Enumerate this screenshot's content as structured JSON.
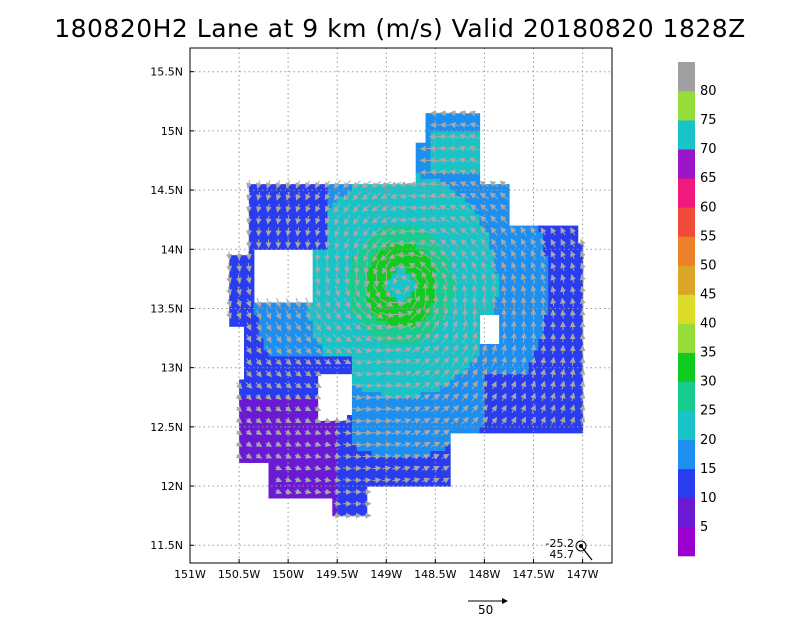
{
  "chart_data": {
    "type": "heatmap",
    "title": "180820H2 Lane at 9 km (m/s) Valid 20180820 1828Z",
    "xlabel": "",
    "ylabel": "",
    "xlim": [
      -151.0,
      -146.7
    ],
    "ylim": [
      11.35,
      15.7
    ],
    "x_ticks": [
      {
        "v": -151.0,
        "label": "151W"
      },
      {
        "v": -150.5,
        "label": "150.5W"
      },
      {
        "v": -150.0,
        "label": "150W"
      },
      {
        "v": -149.5,
        "label": "149.5W"
      },
      {
        "v": -149.0,
        "label": "149W"
      },
      {
        "v": -148.5,
        "label": "148.5W"
      },
      {
        "v": -148.0,
        "label": "148W"
      },
      {
        "v": -147.5,
        "label": "147.5W"
      },
      {
        "v": -147.0,
        "label": "147W"
      }
    ],
    "y_ticks": [
      {
        "v": 11.5,
        "label": "11.5N"
      },
      {
        "v": 12.0,
        "label": "12N"
      },
      {
        "v": 12.5,
        "label": "12.5N"
      },
      {
        "v": 13.0,
        "label": "13N"
      },
      {
        "v": 13.5,
        "label": "13.5N"
      },
      {
        "v": 14.0,
        "label": "14N"
      },
      {
        "v": 14.5,
        "label": "14.5N"
      },
      {
        "v": 15.0,
        "label": "15N"
      },
      {
        "v": 15.5,
        "label": "15.5N"
      }
    ],
    "grid": true,
    "center": {
      "lon": -148.85,
      "lat": 13.7
    },
    "colorbar": {
      "levels": [
        0,
        5,
        10,
        15,
        20,
        25,
        30,
        35,
        40,
        45,
        50,
        55,
        60,
        65,
        70,
        75,
        80,
        85
      ],
      "labels": [
        "5",
        "10",
        "15",
        "20",
        "25",
        "30",
        "35",
        "40",
        "45",
        "50",
        "55",
        "60",
        "65",
        "70",
        "75",
        "80"
      ],
      "colors": [
        "#9a00d0",
        "#6a1ad2",
        "#2a3cf0",
        "#1c8ff0",
        "#19c3c8",
        "#18cc90",
        "#10cc20",
        "#96dc3a",
        "#dcdc28",
        "#dca528",
        "#ec8028",
        "#f04a3a",
        "#f01a7c",
        "#9c15c8",
        "#1ac3c8",
        "#96dc3a",
        "#a0a0a0"
      ]
    },
    "corner_labels": [
      "-25.2",
      "45.7"
    ],
    "reference_vector": {
      "value": 50,
      "label": "50"
    }
  }
}
